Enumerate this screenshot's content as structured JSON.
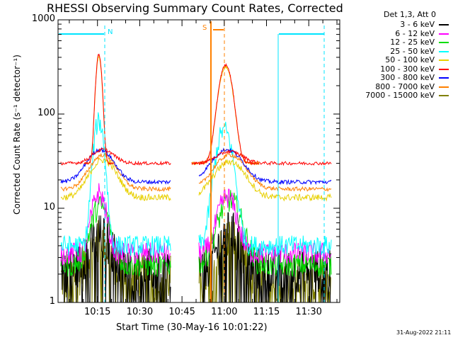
{
  "chart_data": {
    "type": "line",
    "title": "RHESSI Observing Summary Count Rates, Corrected",
    "xlabel": "Start Time (30-May-16 10:01:22)",
    "ylabel": "Corrected Count Rate (s⁻¹ detector⁻¹)",
    "y_scale": "log",
    "ylim": [
      1,
      1000
    ],
    "xlim_minutes": [
      0,
      100
    ],
    "x_tick_labels": [
      "10:15",
      "10:30",
      "10:45",
      "11:00",
      "11:15",
      "11:30"
    ],
    "y_tick_labels": [
      "1",
      "10",
      "100",
      "1000"
    ],
    "legend_header": "Det 1,3, Att 0",
    "legend_placement": "right, outside plot",
    "grid": false,
    "series": [
      {
        "name": "3 - 6 keV",
        "color": "#000000"
      },
      {
        "name": "6 - 12 keV",
        "color": "#ff00ff"
      },
      {
        "name": "12 - 25 keV",
        "color": "#00dd00"
      },
      {
        "name": "25 - 50 keV",
        "color": "#00ffff"
      },
      {
        "name": "50 - 100 keV",
        "color": "#e8d000"
      },
      {
        "name": "100 - 300 keV",
        "color": "#ff0000"
      },
      {
        "name": "300 - 800 keV",
        "color": "#0000ff"
      },
      {
        "name": "800 - 7000 keV",
        "color": "#ff8000"
      },
      {
        "name": "7000 - 15000 keV",
        "color": "#808000"
      }
    ],
    "annotations": {
      "flag_n": "N",
      "flag_s": "S"
    }
  },
  "timestamp": "31-Aug-2022 21:11"
}
